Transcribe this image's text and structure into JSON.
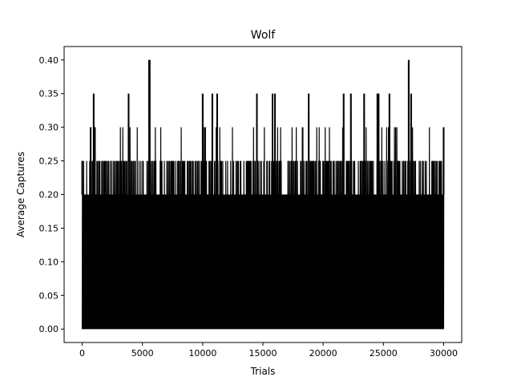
{
  "chart_data": {
    "type": "line",
    "title": "Wolf",
    "xlabel": "Trials",
    "ylabel": "Average Captures",
    "xlim": [
      -1500,
      31500
    ],
    "ylim": [
      -0.02,
      0.42
    ],
    "xticks": [
      0,
      5000,
      10000,
      15000,
      20000,
      25000,
      30000
    ],
    "xtick_labels": [
      "0",
      "5000",
      "10000",
      "15000",
      "20000",
      "25000",
      "30000"
    ],
    "yticks": [
      0.0,
      0.05,
      0.1,
      0.15,
      0.2,
      0.25,
      0.3,
      0.35,
      0.4
    ],
    "ytick_labels": [
      "0.00",
      "0.05",
      "0.10",
      "0.15",
      "0.20",
      "0.25",
      "0.30",
      "0.35",
      "0.40"
    ],
    "grid": false,
    "line_color": "#000000",
    "series": [
      {
        "x": [
          0,
          700,
          950,
          1050,
          3850,
          5550,
          5600,
          10000,
          10200,
          10800,
          11200,
          14500,
          15800,
          16000,
          18800,
          21700,
          22300,
          23400,
          24500,
          24600,
          25500,
          27100,
          27300,
          30000
        ],
        "values": [
          0.25,
          0.3,
          0.35,
          0.3,
          0.35,
          0.4,
          0.4,
          0.35,
          0.3,
          0.35,
          0.35,
          0.35,
          0.35,
          0.35,
          0.35,
          0.35,
          0.35,
          0.35,
          0.35,
          0.35,
          0.35,
          0.4,
          0.35,
          0.3
        ]
      }
    ]
  }
}
